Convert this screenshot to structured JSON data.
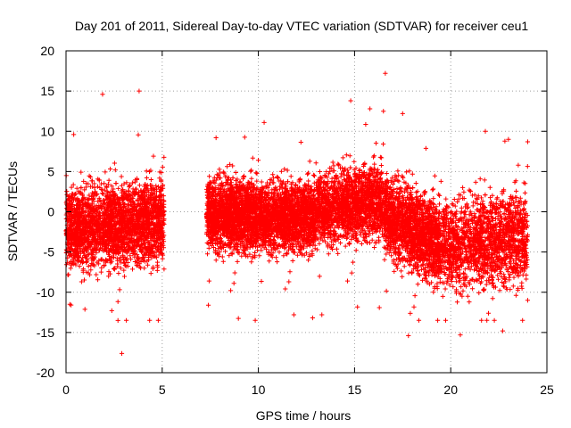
{
  "chart_data": {
    "type": "scatter",
    "title": "Day 201 of 2011, Sidereal Day-to-day VTEC variation (SDTVAR) for receiver ceu1",
    "xlabel": "GPS time / hours",
    "ylabel": "SDTVAR / TECUs",
    "xlim": [
      0,
      25
    ],
    "ylim": [
      -20,
      20
    ],
    "xticks": [
      0,
      5,
      10,
      15,
      20,
      25
    ],
    "yticks": [
      -20,
      -15,
      -10,
      -5,
      0,
      5,
      10,
      15,
      20
    ],
    "xtick_labels": [
      "0",
      "5",
      "10",
      "15",
      "20",
      "25"
    ],
    "ytick_labels": [
      "-20",
      "-15",
      "-10",
      "-5",
      "0",
      "5",
      "10",
      "15",
      "20"
    ],
    "grid": true,
    "marker": "+",
    "marker_color": "#ff0000",
    "series": [
      {
        "name": "SDTVAR",
        "note": "dense scatter of several thousand points; data gap between ~5.1 h and ~7.3 h",
        "segments": [
          {
            "x_start": 0.0,
            "x_end": 5.1,
            "center_start": -2,
            "center_end": -1,
            "spread": 4.5
          },
          {
            "x_start": 7.3,
            "x_end": 10.0,
            "center_start": 0,
            "center_end": -0.5,
            "spread": 4.0
          },
          {
            "x_start": 10.0,
            "x_end": 13.0,
            "center_start": -0.5,
            "center_end": -0.5,
            "spread": 3.8
          },
          {
            "x_start": 13.0,
            "x_end": 16.5,
            "center_start": 0.5,
            "center_end": 1.5,
            "spread": 4.0
          },
          {
            "x_start": 16.5,
            "x_end": 19.5,
            "center_start": 0,
            "center_end": -4,
            "spread": 4.5
          },
          {
            "x_start": 19.5,
            "x_end": 24.0,
            "center_start": -4,
            "center_end": -3,
            "spread": 5.0
          }
        ],
        "outliers": [
          {
            "x": 1.9,
            "y": 14.6
          },
          {
            "x": 3.8,
            "y": 15.0
          },
          {
            "x": 16.6,
            "y": 17.2
          },
          {
            "x": 14.8,
            "y": 13.8
          },
          {
            "x": 2.9,
            "y": -17.6
          },
          {
            "x": 17.8,
            "y": -15.4
          },
          {
            "x": 20.5,
            "y": -15.3
          },
          {
            "x": 22.7,
            "y": -14.8
          },
          {
            "x": 10.3,
            "y": 11.1
          },
          {
            "x": 7.8,
            "y": 9.2
          },
          {
            "x": 0.4,
            "y": 9.6
          },
          {
            "x": 24.0,
            "y": 8.7
          },
          {
            "x": 7.4,
            "y": -11.6
          },
          {
            "x": 0.2,
            "y": -11.5
          },
          {
            "x": 2.7,
            "y": -13.5
          },
          {
            "x": 15.8,
            "y": 12.8
          },
          {
            "x": 16.5,
            "y": 12.5
          },
          {
            "x": 17.5,
            "y": 12.2
          },
          {
            "x": 23.0,
            "y": 9.0
          },
          {
            "x": 21.8,
            "y": 10.0
          },
          {
            "x": 13.3,
            "y": -12.8
          },
          {
            "x": 24.0,
            "y": -11.0
          }
        ]
      }
    ]
  }
}
